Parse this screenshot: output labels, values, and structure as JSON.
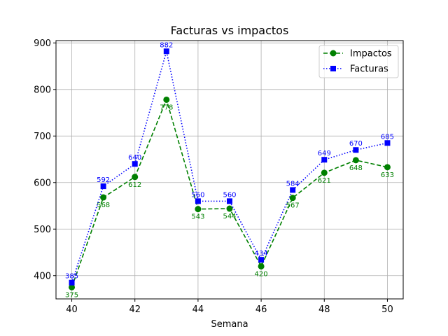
{
  "chart_data": {
    "type": "line",
    "title": "Facturas vs impactos",
    "xlabel": "Semana",
    "ylabel": "",
    "x": [
      40,
      41,
      42,
      43,
      44,
      45,
      46,
      47,
      48,
      49,
      50
    ],
    "xlim": [
      39.5,
      50.5
    ],
    "ylim": [
      350,
      905
    ],
    "xticks": [
      40,
      42,
      44,
      46,
      48,
      50
    ],
    "yticks": [
      400,
      500,
      600,
      700,
      800,
      900
    ],
    "grid": true,
    "legend_position": "top-right",
    "series": [
      {
        "name": "Impactos",
        "color": "#008000",
        "line_style": "dashed",
        "marker": "circle",
        "values": [
          375,
          568,
          612,
          778,
          543,
          544,
          420,
          567,
          621,
          648,
          633
        ],
        "labels": [
          "375",
          "568",
          "612",
          "778",
          "543",
          "544",
          "420",
          "567",
          "621",
          "648",
          "633"
        ],
        "label_position": "below"
      },
      {
        "name": "Facturas",
        "color": "#0000ff",
        "line_style": "dotted",
        "marker": "square",
        "values": [
          385,
          592,
          640,
          882,
          560,
          560,
          434,
          584,
          649,
          670,
          685
        ],
        "labels": [
          "385",
          "592",
          "640",
          "882",
          "560",
          "560",
          "434",
          "584",
          "649",
          "670",
          "685"
        ],
        "label_position": "above"
      }
    ]
  }
}
